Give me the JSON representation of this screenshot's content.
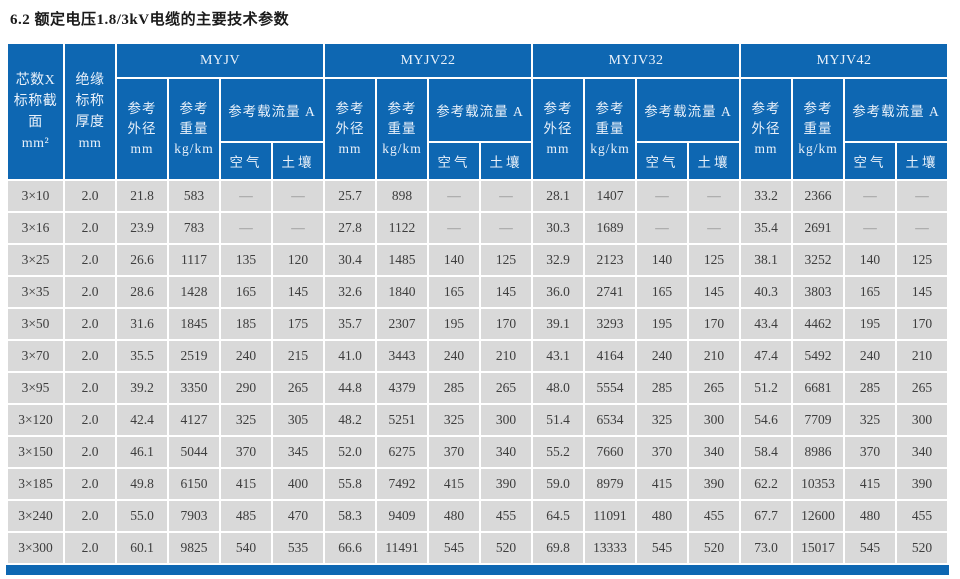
{
  "page": {
    "title": "6.2 额定电压1.8/3kV电缆的主要技术参数"
  },
  "colors": {
    "header_blue": "#0e67b2",
    "cell_gray": "#d9d9d9",
    "text_dark": "#3d3d3d",
    "header_text": "#e9f1fa",
    "dash_gray": "#8a8a8a",
    "page_bg": "#ffffff"
  },
  "table": {
    "header": {
      "col_core": "芯数X\n标称截\n面\nmm²",
      "col_insulation": "绝缘\n标称\n厚度\nmm",
      "groups": [
        {
          "name": "MYJV"
        },
        {
          "name": "MYJV22"
        },
        {
          "name": "MYJV32"
        },
        {
          "name": "MYJV42"
        }
      ],
      "sub": {
        "od": "参考\n外径\nmm",
        "weight": "参考\n重量\nkg/km",
        "ampacity": "参考载流量 A",
        "air": "空气",
        "soil": "土壤"
      }
    },
    "rows": [
      [
        "3×10",
        "2.0",
        "21.8",
        "583",
        "—",
        "—",
        "25.7",
        "898",
        "—",
        "—",
        "28.1",
        "1407",
        "—",
        "—",
        "33.2",
        "2366",
        "—",
        "—"
      ],
      [
        "3×16",
        "2.0",
        "23.9",
        "783",
        "—",
        "—",
        "27.8",
        "1122",
        "—",
        "—",
        "30.3",
        "1689",
        "—",
        "—",
        "35.4",
        "2691",
        "—",
        "—"
      ],
      [
        "3×25",
        "2.0",
        "26.6",
        "1117",
        "135",
        "120",
        "30.4",
        "1485",
        "140",
        "125",
        "32.9",
        "2123",
        "140",
        "125",
        "38.1",
        "3252",
        "140",
        "125"
      ],
      [
        "3×35",
        "2.0",
        "28.6",
        "1428",
        "165",
        "145",
        "32.6",
        "1840",
        "165",
        "145",
        "36.0",
        "2741",
        "165",
        "145",
        "40.3",
        "3803",
        "165",
        "145"
      ],
      [
        "3×50",
        "2.0",
        "31.6",
        "1845",
        "185",
        "175",
        "35.7",
        "2307",
        "195",
        "170",
        "39.1",
        "3293",
        "195",
        "170",
        "43.4",
        "4462",
        "195",
        "170"
      ],
      [
        "3×70",
        "2.0",
        "35.5",
        "2519",
        "240",
        "215",
        "41.0",
        "3443",
        "240",
        "210",
        "43.1",
        "4164",
        "240",
        "210",
        "47.4",
        "5492",
        "240",
        "210"
      ],
      [
        "3×95",
        "2.0",
        "39.2",
        "3350",
        "290",
        "265",
        "44.8",
        "4379",
        "285",
        "265",
        "48.0",
        "5554",
        "285",
        "265",
        "51.2",
        "6681",
        "285",
        "265"
      ],
      [
        "3×120",
        "2.0",
        "42.4",
        "4127",
        "325",
        "305",
        "48.2",
        "5251",
        "325",
        "300",
        "51.4",
        "6534",
        "325",
        "300",
        "54.6",
        "7709",
        "325",
        "300"
      ],
      [
        "3×150",
        "2.0",
        "46.1",
        "5044",
        "370",
        "345",
        "52.0",
        "6275",
        "370",
        "340",
        "55.2",
        "7660",
        "370",
        "340",
        "58.4",
        "8986",
        "370",
        "340"
      ],
      [
        "3×185",
        "2.0",
        "49.8",
        "6150",
        "415",
        "400",
        "55.8",
        "7492",
        "415",
        "390",
        "59.0",
        "8979",
        "415",
        "390",
        "62.2",
        "10353",
        "415",
        "390"
      ],
      [
        "3×240",
        "2.0",
        "55.0",
        "7903",
        "485",
        "470",
        "58.3",
        "9409",
        "480",
        "455",
        "64.5",
        "11091",
        "480",
        "455",
        "67.7",
        "12600",
        "480",
        "455"
      ],
      [
        "3×300",
        "2.0",
        "60.1",
        "9825",
        "540",
        "535",
        "66.6",
        "11491",
        "545",
        "520",
        "69.8",
        "13333",
        "545",
        "520",
        "73.0",
        "15017",
        "545",
        "520"
      ]
    ]
  }
}
